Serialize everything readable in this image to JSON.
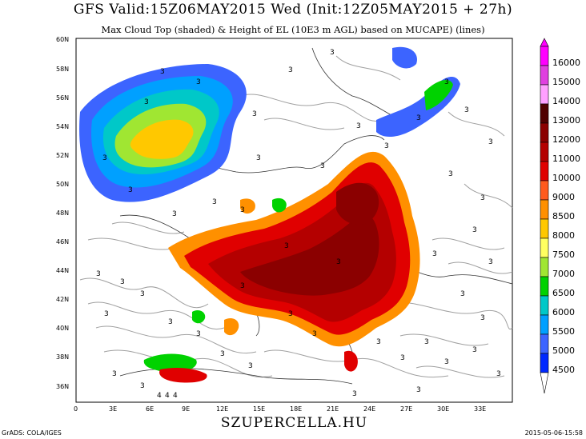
{
  "header": {
    "title": "GFS Valid:15Z06MAY2015 Wed (Init:12Z05MAY2015 + 27h)",
    "subtitle": "Max Cloud Top (shaded) & Height of EL (10E3 m AGL) based on MUCAPE) (lines)"
  },
  "footer": {
    "left": "GrADS: COLA/IGES",
    "center": "SZUPERCELLA.HU",
    "right": "2015-05-06-15:58"
  },
  "axes": {
    "lat_labels": [
      "60N",
      "58N",
      "56N",
      "54N",
      "52N",
      "50N",
      "48N",
      "46N",
      "44N",
      "42N",
      "40N",
      "38N",
      "36N"
    ],
    "lon_labels": [
      "0",
      "3E",
      "6E",
      "9E",
      "12E",
      "15E",
      "18E",
      "21E",
      "24E",
      "27E",
      "30E",
      "33E"
    ]
  },
  "colorbar": {
    "labels": [
      "16000",
      "15000",
      "14000",
      "13000",
      "12000",
      "11000",
      "10000",
      "9000",
      "8500",
      "8000",
      "7500",
      "7000",
      "6500",
      "6000",
      "5500",
      "5000",
      "4500"
    ],
    "colors": [
      "#ff00ff",
      "#e040e0",
      "#ffa0ff",
      "#500000",
      "#8b0000",
      "#b40000",
      "#e00000",
      "#ff5a1e",
      "#ff9000",
      "#ffc800",
      "#ffff60",
      "#a0e632",
      "#00d200",
      "#00c8c8",
      "#00a0ff",
      "#3c64ff",
      "#0028ff"
    ]
  },
  "map_markers": {
    "el_label": "3",
    "el_label_4": "4"
  }
}
